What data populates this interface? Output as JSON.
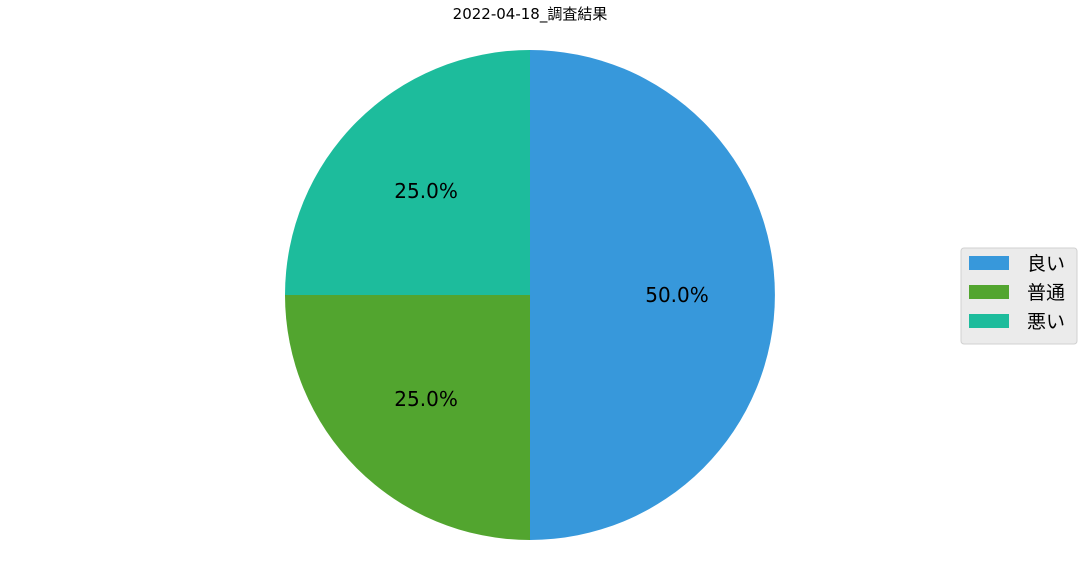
{
  "chart_data": {
    "type": "pie",
    "title": "2022-04-18_調査結果",
    "categories": [
      "良い",
      "普通",
      "悪い"
    ],
    "values": [
      50.0,
      25.0,
      25.0
    ],
    "value_labels": [
      "50.0%",
      "25.0%",
      "25.0%"
    ],
    "colors": [
      "#3798db",
      "#52a52f",
      "#1dbc9c"
    ],
    "start_angle_deg": 90,
    "direction": "clockwise",
    "legend": {
      "placement": "center-right",
      "entries": [
        "良い",
        "普通",
        "悪い"
      ]
    }
  }
}
